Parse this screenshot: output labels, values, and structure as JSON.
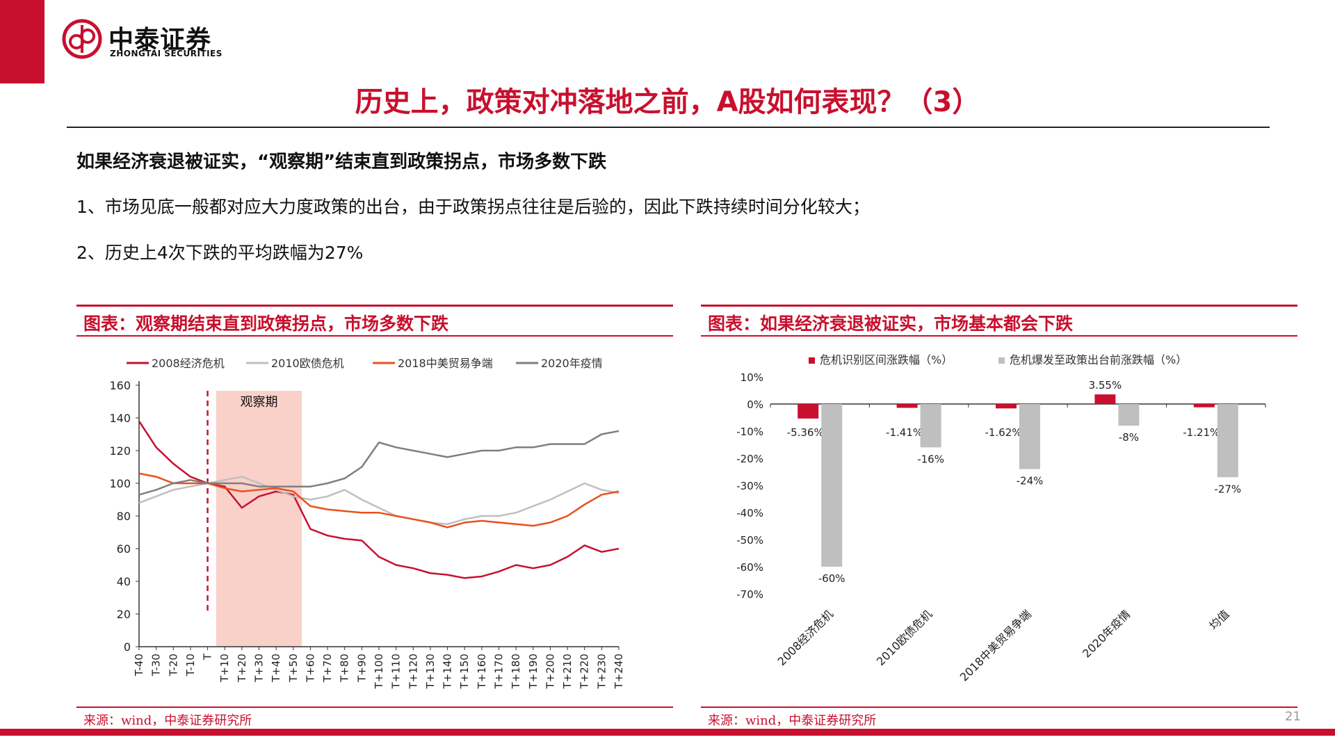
{
  "brand": {
    "name_cn": "中泰证券",
    "name_en": "ZHONGTAI SECURITIES",
    "color": "#c8102e"
  },
  "title": "历史上，政策对冲落地之前，A股如何表现？（3）",
  "headline": "如果经济衰退被证实，“观察期”结束直到政策拐点，市场多数下跌",
  "points": [
    "1、市场见底一般都对应大力度政策的出台，由于政策拐点往往是后验的，因此下跌持续时间分化较大；",
    "2、历史上4次下跌的平均跌幅为27%"
  ],
  "left_panel": {
    "title": "图表：观察期结束直到政策拐点，市场多数下跌",
    "source": "来源：wind，中泰证券研究所"
  },
  "right_panel": {
    "title": "图表：如果经济衰退被证实，市场基本都会下跌",
    "source": "来源：wind，中泰证券研究所"
  },
  "page_number": "21",
  "chart_data": [
    {
      "type": "line",
      "x_ticks": [
        "T-40",
        "T-30",
        "T-20",
        "T-10",
        "T",
        "T+10",
        "T+20",
        "T+30",
        "T+40",
        "T+50",
        "T+60",
        "T+70",
        "T+80",
        "T+90",
        "T+100",
        "T+110",
        "T+120",
        "T+130",
        "T+140",
        "T+150",
        "T+160",
        "T+170",
        "T+180",
        "T+190",
        "T+200",
        "T+210",
        "T+220",
        "T+230",
        "T+240"
      ],
      "x": [
        -40,
        -30,
        -20,
        -10,
        0,
        10,
        20,
        30,
        40,
        50,
        60,
        70,
        80,
        90,
        100,
        110,
        120,
        130,
        140,
        150,
        160,
        170,
        180,
        190,
        200,
        210,
        220,
        230,
        240
      ],
      "xlim": [
        -40,
        240
      ],
      "ylim": [
        0,
        160
      ],
      "y_ticks": [
        0,
        20,
        40,
        60,
        80,
        100,
        120,
        140,
        160
      ],
      "legend_position": "top",
      "shaded_region": {
        "label": "观察期",
        "x_start": 5,
        "x_end": 55,
        "color": "#f8c9c0"
      },
      "marker_line": {
        "x": 0,
        "color": "#c8102e",
        "style": "dashed"
      },
      "series": [
        {
          "name": "2008经济危机",
          "color": "#c8102e",
          "values": [
            138,
            122,
            112,
            104,
            100,
            98,
            85,
            92,
            95,
            93,
            72,
            68,
            66,
            65,
            55,
            50,
            48,
            45,
            44,
            42,
            43,
            46,
            50,
            48,
            50,
            55,
            62,
            58,
            60
          ]
        },
        {
          "name": "2010欧债危机",
          "color": "#bfbfbf",
          "values": [
            88,
            92,
            96,
            98,
            100,
            102,
            104,
            100,
            96,
            92,
            90,
            92,
            96,
            90,
            85,
            80,
            78,
            76,
            75,
            78,
            80,
            80,
            82,
            86,
            90,
            95,
            100,
            96,
            94
          ]
        },
        {
          "name": "2018中美贸易争端",
          "color": "#e8501e",
          "values": [
            106,
            104,
            100,
            100,
            100,
            97,
            95,
            96,
            97,
            95,
            86,
            84,
            83,
            82,
            82,
            80,
            78,
            76,
            73,
            76,
            77,
            76,
            75,
            74,
            76,
            80,
            87,
            93,
            95
          ]
        },
        {
          "name": "2020年疫情",
          "color": "#7f7f7f",
          "values": [
            93,
            96,
            100,
            102,
            100,
            100,
            100,
            98,
            98,
            98,
            98,
            100,
            103,
            110,
            125,
            122,
            120,
            118,
            116,
            118,
            120,
            120,
            122,
            122,
            124,
            124,
            124,
            130,
            132
          ]
        }
      ]
    },
    {
      "type": "bar",
      "categories": [
        "2008经济危机",
        "2010欧债危机",
        "2018中美贸易争端",
        "2020年疫情",
        "均值"
      ],
      "ylim": [
        -70,
        10
      ],
      "y_ticks": [
        10,
        0,
        -10,
        -20,
        -30,
        -40,
        -50,
        -60,
        -70
      ],
      "y_tick_labels": [
        "10%",
        "0%",
        "-10%",
        "-20%",
        "-30%",
        "-40%",
        "-50%",
        "-60%",
        "-70%"
      ],
      "legend_position": "top",
      "series": [
        {
          "name": "危机识别区间涨跌幅（%）",
          "color": "#c8102e",
          "values": [
            -5.36,
            -1.41,
            -1.62,
            3.55,
            -1.21
          ],
          "labels": [
            "-5.36%",
            "-1.41%",
            "-1.62%",
            "3.55%",
            "-1.21%"
          ]
        },
        {
          "name": "危机爆发至政策出台前涨跌幅（%）",
          "color": "#bfbfbf",
          "values": [
            -60,
            -16,
            -24,
            -8,
            -27
          ],
          "labels": [
            "-60%",
            "-16%",
            "-24%",
            "-8%",
            "-27%"
          ]
        }
      ]
    }
  ]
}
